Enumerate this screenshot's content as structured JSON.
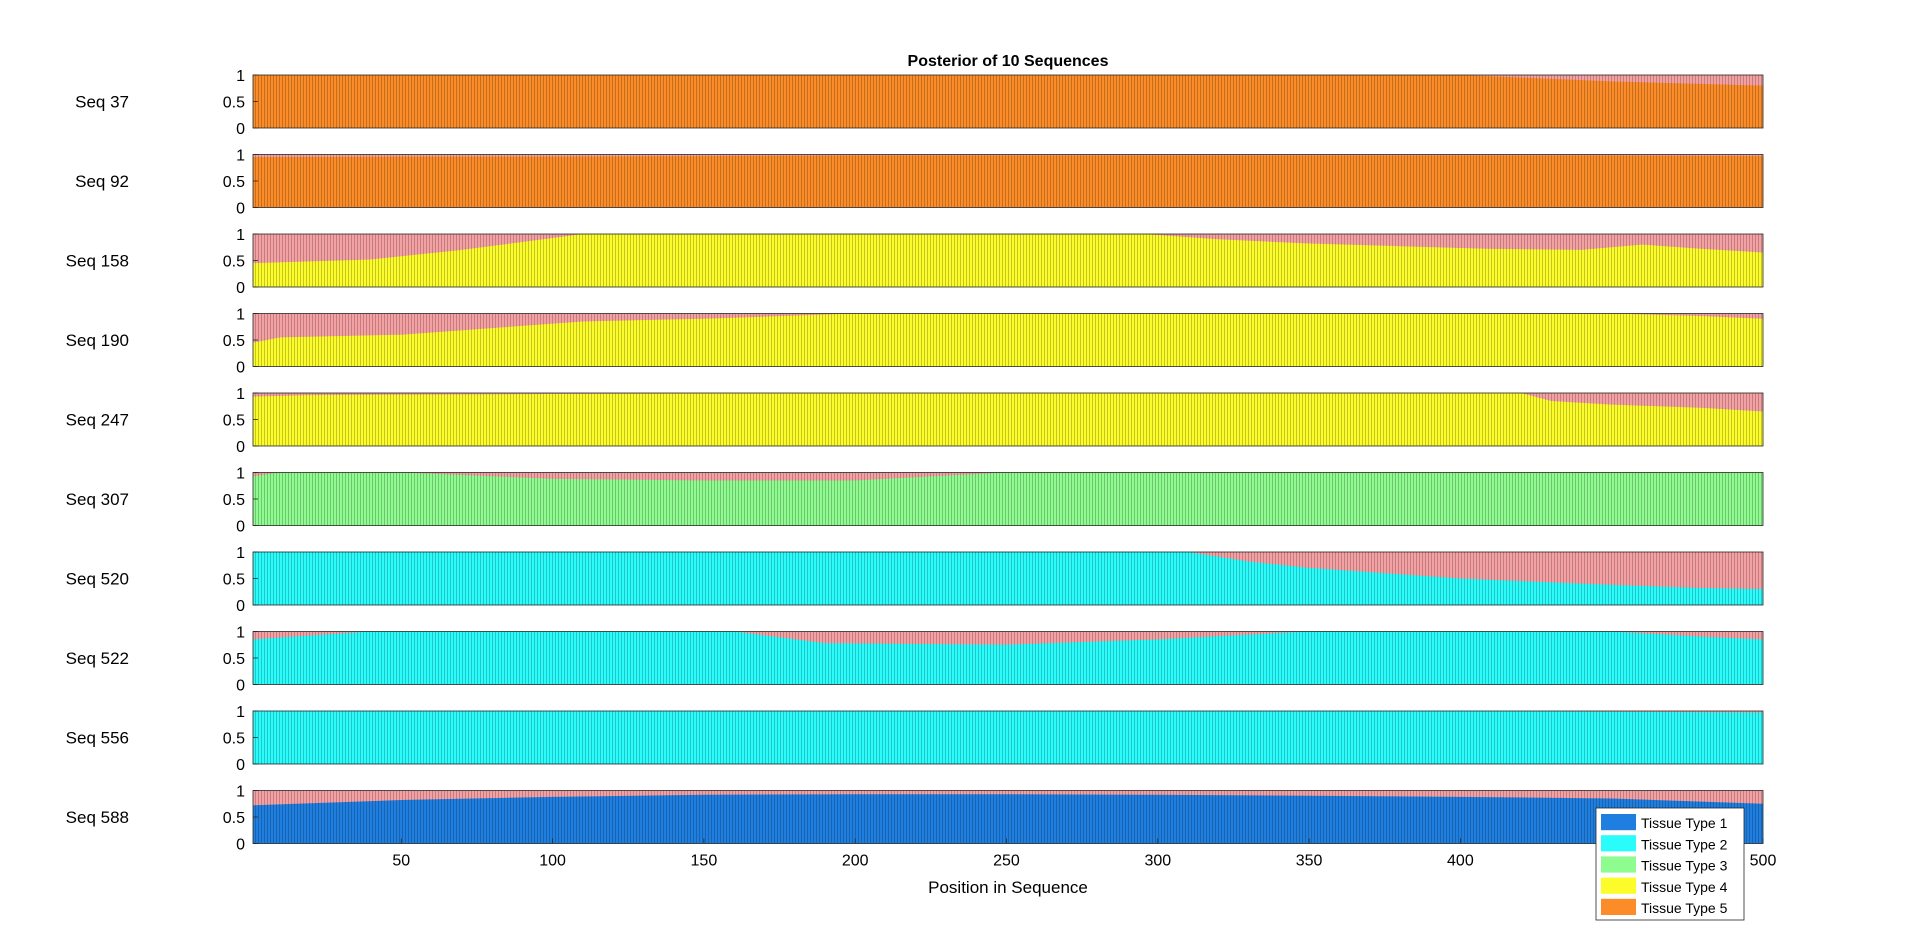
{
  "chart_data": {
    "type": "area",
    "title": "Posterior of 10 Sequences",
    "xlabel": "Position in Sequence",
    "ylabel": "",
    "xlim": [
      1,
      500
    ],
    "ylim": [
      0,
      1
    ],
    "x_ticks": [
      50,
      100,
      150,
      200,
      250,
      300,
      350,
      400,
      500
    ],
    "y_ticks": [
      0,
      0.5,
      1
    ],
    "y_tick_labels": [
      "0",
      "0.5",
      "1"
    ],
    "grid": false,
    "legend_position": "bottom-right",
    "legend": [
      {
        "name": "Tissue Type 1",
        "color": "#1f7fe0"
      },
      {
        "name": "Tissue Type 2",
        "color": "#2afcfc"
      },
      {
        "name": "Tissue Type 3",
        "color": "#8efc8e"
      },
      {
        "name": "Tissue Type 4",
        "color": "#fcfc2a"
      },
      {
        "name": "Tissue Type 5",
        "color": "#fc8c28"
      }
    ],
    "remainder_color": "#f5a0a3",
    "panels": [
      {
        "label": "Seq 37",
        "type": 5,
        "x": [
          1,
          100,
          200,
          300,
          400,
          450,
          500
        ],
        "y": [
          1,
          1,
          1,
          1,
          1,
          0.88,
          0.8
        ]
      },
      {
        "label": "Seq 92",
        "type": 5,
        "x": [
          1,
          50,
          100,
          150,
          200,
          250,
          300,
          350,
          400,
          450,
          500
        ],
        "y": [
          0.95,
          0.96,
          0.96,
          0.97,
          0.98,
          0.98,
          0.98,
          0.98,
          0.98,
          0.98,
          0.97
        ]
      },
      {
        "label": "Seq 158",
        "type": 4,
        "x": [
          1,
          40,
          70,
          110,
          150,
          200,
          250,
          295,
          320,
          350,
          380,
          410,
          440,
          460,
          480,
          500
        ],
        "y": [
          0.45,
          0.52,
          0.7,
          1,
          1,
          1,
          1,
          1,
          0.9,
          0.82,
          0.77,
          0.72,
          0.7,
          0.8,
          0.72,
          0.65
        ]
      },
      {
        "label": "Seq 190",
        "type": 4,
        "x": [
          1,
          10,
          50,
          110,
          150,
          200,
          250,
          300,
          350,
          400,
          450,
          480,
          500
        ],
        "y": [
          0.45,
          0.55,
          0.6,
          0.85,
          0.9,
          1,
          1,
          1,
          1,
          1,
          1,
          0.95,
          0.9
        ]
      },
      {
        "label": "Seq 247",
        "type": 4,
        "x": [
          1,
          20,
          100,
          200,
          300,
          400,
          420,
          430,
          450,
          480,
          500
        ],
        "y": [
          0.93,
          0.96,
          0.98,
          1,
          1,
          1,
          1,
          0.85,
          0.78,
          0.72,
          0.65
        ]
      },
      {
        "label": "Seq 307",
        "type": 3,
        "x": [
          1,
          10,
          50,
          100,
          150,
          200,
          250,
          300,
          350,
          400,
          450,
          500
        ],
        "y": [
          0.93,
          1,
          1,
          0.88,
          0.85,
          0.85,
          1,
          1,
          1,
          1,
          1,
          1
        ]
      },
      {
        "label": "Seq 520",
        "type": 2,
        "x": [
          1,
          100,
          200,
          310,
          330,
          350,
          380,
          400,
          420,
          450,
          480,
          500
        ],
        "y": [
          1,
          1,
          1,
          1,
          0.82,
          0.7,
          0.58,
          0.5,
          0.45,
          0.38,
          0.32,
          0.3
        ]
      },
      {
        "label": "Seq 522",
        "type": 2,
        "x": [
          1,
          40,
          100,
          160,
          190,
          250,
          300,
          350,
          400,
          450,
          480,
          500
        ],
        "y": [
          0.85,
          1,
          1,
          1,
          0.78,
          0.75,
          0.85,
          1,
          1,
          1,
          0.9,
          0.85
        ]
      },
      {
        "label": "Seq 556",
        "type": 2,
        "x": [
          1,
          100,
          200,
          300,
          400,
          500
        ],
        "y": [
          1,
          1,
          1,
          1,
          1,
          0.97
        ]
      },
      {
        "label": "Seq 588",
        "type": 1,
        "x": [
          1,
          50,
          100,
          150,
          200,
          250,
          300,
          350,
          400,
          450,
          500
        ],
        "y": [
          0.72,
          0.82,
          0.88,
          0.92,
          0.93,
          0.93,
          0.92,
          0.9,
          0.88,
          0.85,
          0.75
        ]
      }
    ]
  }
}
